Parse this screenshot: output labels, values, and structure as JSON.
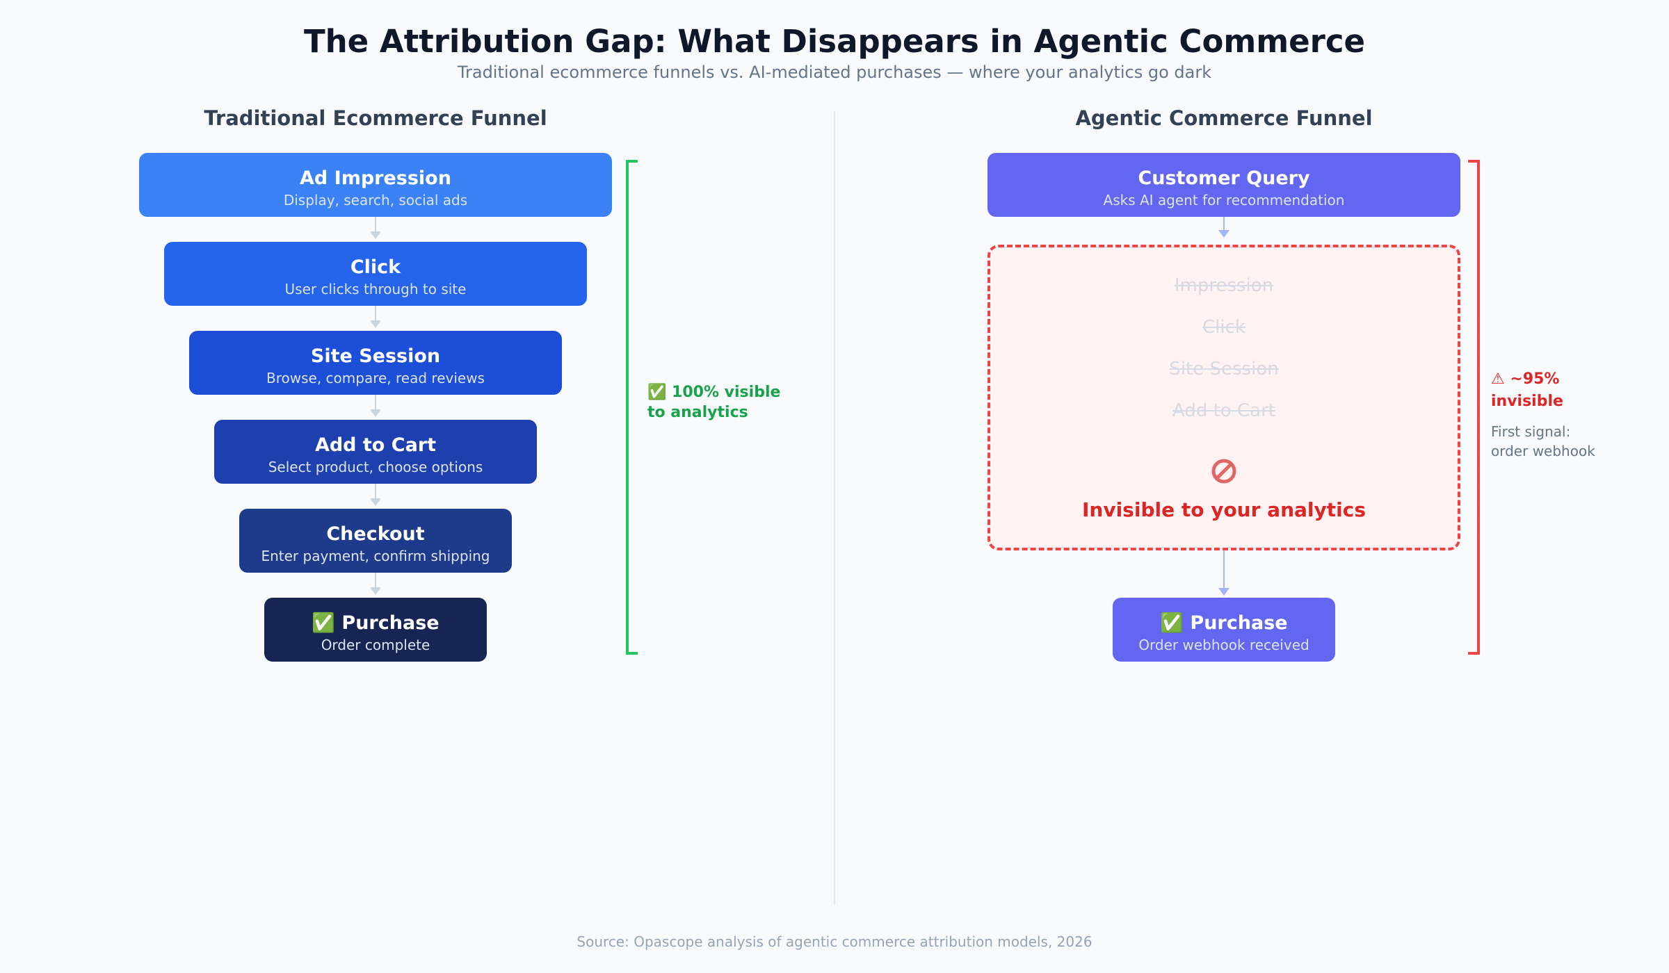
{
  "title": "The Attribution Gap: What Disappears in Agentic Commerce",
  "subtitle": "Traditional ecommerce funnels vs. AI-mediated purchases — where your analytics go dark",
  "traditional": {
    "heading": "Traditional Ecommerce Funnel",
    "stages": [
      {
        "name": "Ad Impression",
        "desc": "Display, search, social ads",
        "color": "#3b82f6"
      },
      {
        "name": "Click",
        "desc": "User clicks through to site",
        "color": "#2563eb"
      },
      {
        "name": "Site Session",
        "desc": "Browse, compare, read reviews",
        "color": "#1d4ed8"
      },
      {
        "name": "Add to Cart",
        "desc": "Select product, choose options",
        "color": "#1e40af"
      },
      {
        "name": "Checkout",
        "desc": "Enter payment, confirm shipping",
        "color": "#1e3a8a"
      },
      {
        "name": "✅ Purchase",
        "desc": "Order complete",
        "color": "#172554"
      }
    ],
    "visibility_line1": "✅ 100% visible",
    "visibility_line2": "to analytics",
    "bracket_color": "#22c55e"
  },
  "agentic": {
    "heading": "Agentic Commerce Funnel",
    "query": {
      "name": "Customer Query",
      "desc": "Asks AI agent for recommendation",
      "color": "#6366f1"
    },
    "lost_stages": [
      "Impression",
      "Click",
      "Site Session",
      "Add to Cart"
    ],
    "invisible_icon": "prohibited-icon",
    "invisible_label": "Invisible to your analytics",
    "purchase": {
      "name": "✅ Purchase",
      "desc": "Order webhook received",
      "color": "#6366f1"
    },
    "visibility_line1": "⚠ ~95%",
    "visibility_line2": "invisible",
    "first_signal_line1": "First signal:",
    "first_signal_line2": "order webhook",
    "bracket_color": "#ef4444"
  },
  "source": "Source: Opascope analysis of agentic commerce attribution models, 2026"
}
